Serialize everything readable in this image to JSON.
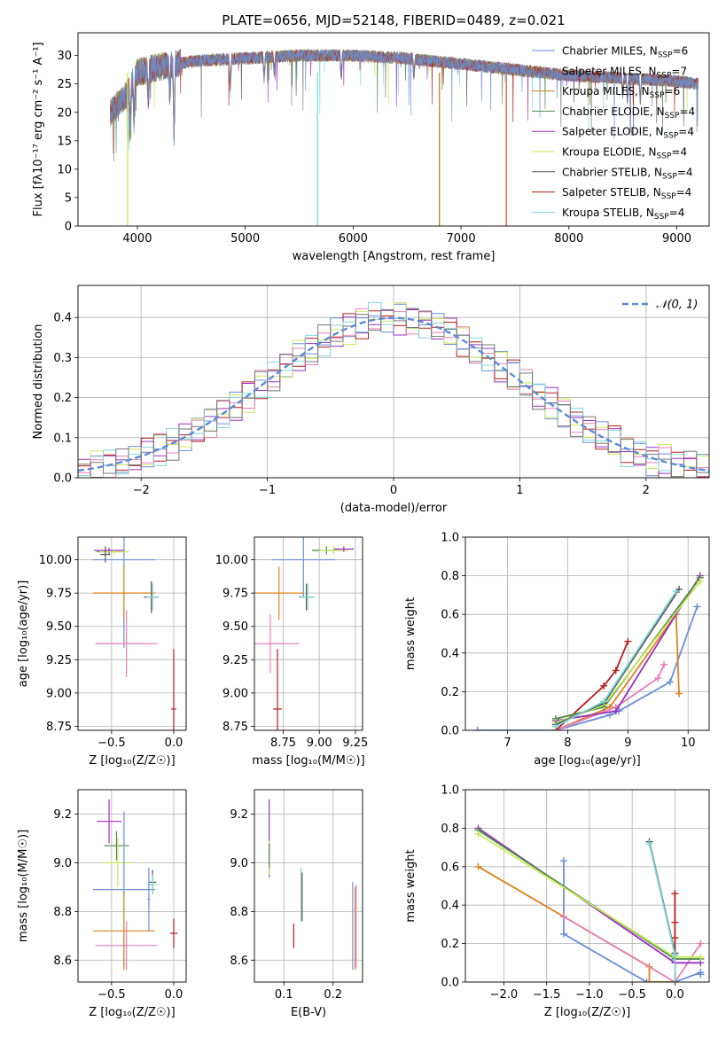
{
  "colors": [
    "#6a8fd8",
    "#6e6e6e",
    "#e0801c",
    "#5aa05a",
    "#9b30c0",
    "#c8e85a",
    "#888888",
    "#b81c1c",
    "#7fd8d8",
    "#e87fb8"
  ],
  "chart_data": [
    {
      "id": "spectrum",
      "type": "line",
      "title": "PLATE=0656, MJD=52148, FIBERID=0489, z=0.021",
      "xlabel": "wavelength [Angstrom, rest frame]",
      "ylabel": "Flux [fλ10⁻¹⁷ erg cm⁻² s⁻¹ A⁻¹]",
      "xlim": [
        3450,
        9300
      ],
      "ylim": [
        0,
        34
      ],
      "xticks": [
        4000,
        5000,
        6000,
        7000,
        8000,
        9000
      ],
      "yticks": [
        0,
        5,
        10,
        15,
        20,
        25,
        30
      ],
      "grid": false,
      "legend_position": "top-right",
      "legend": [
        {
          "label": "Chabrier MILES, N",
          "sub": "SSP",
          "suffix": "=6",
          "color": "#6a8fd8"
        },
        {
          "label": "Salpeter MILES, N",
          "sub": "SSP",
          "suffix": "=7",
          "color": "#7a7a7a"
        },
        {
          "label": "Kroupa MILES, N",
          "sub": "SSP",
          "suffix": "=6",
          "color": "#c0821a"
        },
        {
          "label": "Chabrier ELODIE, N",
          "sub": "SSP",
          "suffix": "=4",
          "color": "#4d8a4d"
        },
        {
          "label": "Salpeter ELODIE, N",
          "sub": "SSP",
          "suffix": "=4",
          "color": "#9b30c0"
        },
        {
          "label": "Kroupa ELODIE, N",
          "sub": "SSP",
          "suffix": "=4",
          "color": "#c8e85a"
        },
        {
          "label": "Chabrier STELIB, N",
          "sub": "SSP",
          "suffix": "=4",
          "color": "#555555"
        },
        {
          "label": "Salpeter STELIB, N",
          "sub": "SSP",
          "suffix": "=4",
          "color": "#b81c1c"
        },
        {
          "label": "Kroupa STELIB, N",
          "sub": "SSP",
          "suffix": "=4",
          "color": "#7fd8d8"
        }
      ],
      "spectrum_range": [
        3750,
        9200
      ],
      "continuum": [
        [
          3750,
          20
        ],
        [
          3900,
          23
        ],
        [
          4000,
          27
        ],
        [
          4200,
          28
        ],
        [
          4500,
          29
        ],
        [
          5000,
          29.5
        ],
        [
          5500,
          30
        ],
        [
          6000,
          30
        ],
        [
          6500,
          29.5
        ],
        [
          7000,
          28.5
        ],
        [
          7500,
          27.5
        ],
        [
          8000,
          26.5
        ],
        [
          8500,
          26
        ],
        [
          9000,
          25.5
        ],
        [
          9200,
          25
        ]
      ],
      "absorption_lines": [
        [
          3934,
          8
        ],
        [
          3969,
          7
        ],
        [
          4102,
          5
        ],
        [
          4300,
          6
        ],
        [
          4340,
          13
        ],
        [
          4861,
          5
        ],
        [
          5175,
          4
        ],
        [
          5270,
          3
        ],
        [
          5890,
          4
        ],
        [
          6563,
          3
        ],
        [
          8500,
          3
        ],
        [
          8542,
          4
        ],
        [
          8662,
          4
        ]
      ],
      "drops": [
        {
          "x": 3910,
          "color": "#c8e85a"
        },
        {
          "x": 5670,
          "color": "#7fd8d8"
        },
        {
          "x": 6800,
          "color": "#c0821a"
        },
        {
          "x": 7420,
          "color": "#e05a1a"
        }
      ]
    },
    {
      "id": "residuals",
      "type": "histogram",
      "xlabel": "(data-model)/error",
      "ylabel": "Normed distribution",
      "xlim": [
        -2.5,
        2.5
      ],
      "ylim": [
        0,
        0.48
      ],
      "xticks": [
        -2,
        -1,
        0,
        1,
        2
      ],
      "yticks": [
        0.0,
        0.1,
        0.2,
        0.3,
        0.4
      ],
      "grid": true,
      "legend_position": "top-right",
      "legend": [
        {
          "label": "𝒩(0, 1)",
          "color": "#5b8bd8",
          "dashed": true
        }
      ],
      "bin_width": 0.1,
      "series": [
        {
          "color": "#6a8fd8",
          "offset": 0
        },
        {
          "color": "#9b30c0",
          "offset": 1
        },
        {
          "color": "#c8e85a",
          "offset": 2
        },
        {
          "color": "#b81c1c",
          "offset": 3
        },
        {
          "color": "#e87fb8",
          "offset": 4
        },
        {
          "color": "#7fd8d8",
          "offset": 5
        },
        {
          "color": "#777777",
          "offset": 6
        }
      ]
    },
    {
      "id": "age-vs-Z",
      "type": "errorbar",
      "xlabel": "Z [log₁₀(Z/Z☉)]",
      "ylabel": "age  [log₁₀(age/yr)]",
      "xlim": [
        -0.77,
        0.1
      ],
      "ylim": [
        8.72,
        10.17
      ],
      "xticks": [
        -0.5,
        0.0
      ],
      "xticklabels": [
        "−0.5",
        "0.0"
      ],
      "yticks": [
        8.75,
        9.0,
        9.25,
        9.5,
        9.75,
        10.0
      ],
      "grid": true,
      "points": [
        {
          "x": -0.4,
          "xerr": 0.25,
          "y": 10.0,
          "yerr": 0.66,
          "color": "#6a8fd8"
        },
        {
          "x": -0.4,
          "xerr": 0.25,
          "y": 9.75,
          "yerr": 0.2,
          "color": "#e0801c"
        },
        {
          "x": -0.38,
          "xerr": 0.25,
          "y": 9.37,
          "yerr": 0.25,
          "color": "#e87fb8"
        },
        {
          "x": -0.52,
          "xerr": 0.1,
          "y": 10.06,
          "yerr": 0.02,
          "color": "#4d8a4d"
        },
        {
          "x": -0.52,
          "xerr": 0.12,
          "y": 10.07,
          "yerr": 0.02,
          "color": "#9b30c0"
        },
        {
          "x": -0.48,
          "xerr": 0.12,
          "y": 10.06,
          "yerr": 0.02,
          "color": "#c8e85a"
        },
        {
          "x": -0.55,
          "xerr": 0.04,
          "y": 10.04,
          "yerr": 0.06,
          "color": "#555555"
        },
        {
          "x": -0.18,
          "xerr": 0.06,
          "y": 9.72,
          "yerr": 0.12,
          "color": "#555555"
        },
        {
          "x": -0.17,
          "xerr": 0.05,
          "y": 9.72,
          "yerr": 0.1,
          "color": "#7fd8d8"
        },
        {
          "x": 0.0,
          "xerr": 0.02,
          "y": 8.88,
          "yerr": 0.45,
          "color": "#b81c1c"
        }
      ]
    },
    {
      "id": "age-vs-mass",
      "type": "errorbar",
      "xlabel": "mass [log₁₀(M/M☉)]",
      "ylabel": "",
      "xlim": [
        8.55,
        9.3
      ],
      "ylim": [
        8.72,
        10.17
      ],
      "xticks": [
        8.75,
        9.0,
        9.25
      ],
      "xticklabels": [
        "8.75",
        "9.00",
        "9.25"
      ],
      "yticks": [
        8.75,
        9.0,
        9.25,
        9.5,
        9.75,
        10.0
      ],
      "grid": true,
      "points": [
        {
          "x": 8.89,
          "xerr": 0.22,
          "y": 10.0,
          "yerr": 0.28,
          "color": "#6a8fd8"
        },
        {
          "x": 8.72,
          "xerr": 0.17,
          "y": 9.75,
          "yerr": 0.2,
          "color": "#e0801c"
        },
        {
          "x": 8.66,
          "xerr": 0.2,
          "y": 9.37,
          "yerr": 0.22,
          "color": "#e87fb8"
        },
        {
          "x": 8.91,
          "xerr": 0.05,
          "y": 9.72,
          "yerr": 0.1,
          "color": "#555555"
        },
        {
          "x": 8.92,
          "xerr": 0.05,
          "y": 9.72,
          "yerr": 0.1,
          "color": "#7fd8d8"
        },
        {
          "x": 9.05,
          "xerr": 0.1,
          "y": 10.07,
          "yerr": 0.03,
          "color": "#4d8a4d"
        },
        {
          "x": 9.1,
          "xerr": 0.1,
          "y": 10.07,
          "yerr": 0.03,
          "color": "#c8e85a"
        },
        {
          "x": 9.17,
          "xerr": 0.07,
          "y": 10.08,
          "yerr": 0.02,
          "color": "#9b30c0"
        },
        {
          "x": 8.71,
          "xerr": 0.03,
          "y": 8.88,
          "yerr": 0.45,
          "color": "#b81c1c"
        }
      ]
    },
    {
      "id": "massweight-vs-age",
      "type": "line",
      "xlabel": "age  [log₁₀(age/yr)]",
      "ylabel": "mass weight",
      "xlim": [
        6.3,
        10.35
      ],
      "ylim": [
        0,
        1.0
      ],
      "xticks": [
        7,
        8,
        9,
        10
      ],
      "yticks": [
        0.0,
        0.2,
        0.4,
        0.6,
        0.8,
        1.0
      ],
      "yticklabels": [
        "0.0",
        "0.2",
        "0.4",
        "0.6",
        "0.8",
        "1.0"
      ],
      "grid": true,
      "series": [
        {
          "color": "#6a8fd8",
          "x": [
            6.5,
            7.8,
            8.7,
            8.85,
            9.7,
            10.15
          ],
          "y": [
            0.0,
            0.0,
            0.08,
            0.1,
            0.25,
            0.64
          ]
        },
        {
          "color": "#e0801c",
          "x": [
            7.8,
            8.7,
            9.8,
            9.85
          ],
          "y": [
            0.0,
            0.12,
            0.6,
            0.19
          ]
        },
        {
          "color": "#e87fb8",
          "x": [
            7.8,
            8.8,
            9.5,
            9.6
          ],
          "y": [
            0.0,
            0.12,
            0.27,
            0.34
          ]
        },
        {
          "color": "#b81c1c",
          "x": [
            7.8,
            8.6,
            8.8,
            9.0
          ],
          "y": [
            0.0,
            0.23,
            0.31,
            0.46
          ]
        },
        {
          "color": "#9b30c0",
          "x": [
            7.8,
            8.8,
            10.2
          ],
          "y": [
            0.05,
            0.1,
            0.8
          ]
        },
        {
          "color": "#4d8a4d",
          "x": [
            7.8,
            8.6,
            10.2
          ],
          "y": [
            0.06,
            0.12,
            0.79
          ]
        },
        {
          "color": "#c8e85a",
          "x": [
            7.8,
            8.6,
            10.2
          ],
          "y": [
            0.04,
            0.13,
            0.77
          ]
        },
        {
          "color": "#555555",
          "x": [
            7.8,
            8.6,
            9.85
          ],
          "y": [
            0.03,
            0.14,
            0.73
          ]
        },
        {
          "color": "#7fd8d8",
          "x": [
            7.8,
            8.6,
            9.8
          ],
          "y": [
            0.02,
            0.15,
            0.72
          ]
        }
      ]
    },
    {
      "id": "mass-vs-Z",
      "type": "errorbar",
      "xlabel": "Z [log₁₀(Z/Z☉)]",
      "ylabel": "mass [log₁₀(M/M☉)]",
      "xlim": [
        -0.77,
        0.1
      ],
      "ylim": [
        8.51,
        9.3
      ],
      "xticks": [
        -0.5,
        0.0
      ],
      "xticklabels": [
        "−0.5",
        "0.0"
      ],
      "yticks": [
        8.6,
        8.8,
        9.0,
        9.2
      ],
      "grid": true,
      "points": [
        {
          "x": -0.52,
          "xerr": 0.1,
          "y": 9.17,
          "yerr": 0.09,
          "color": "#9b30c0"
        },
        {
          "x": -0.46,
          "xerr": 0.1,
          "y": 9.07,
          "yerr": 0.06,
          "color": "#4d8a4d"
        },
        {
          "x": -0.45,
          "xerr": 0.12,
          "y": 9.0,
          "yerr": 0.1,
          "color": "#c8e85a"
        },
        {
          "x": -0.4,
          "xerr": 0.25,
          "y": 8.89,
          "yerr": 0.32,
          "color": "#6a8fd8"
        },
        {
          "x": -0.17,
          "xerr": 0.03,
          "y": 8.92,
          "yerr": 0.05,
          "color": "#555555"
        },
        {
          "x": -0.17,
          "xerr": 0.04,
          "y": 8.91,
          "yerr": 0.04,
          "color": "#7fd8d8"
        },
        {
          "x": -0.2,
          "xerr": 0.01,
          "y": 8.85,
          "yerr": 0.13,
          "color": "#6a8fd8"
        },
        {
          "x": -0.4,
          "xerr": 0.25,
          "y": 8.72,
          "yerr": 0.16,
          "color": "#e0801c"
        },
        {
          "x": -0.38,
          "xerr": 0.25,
          "y": 8.66,
          "yerr": 0.1,
          "color": "#e87fb8"
        },
        {
          "x": 0.0,
          "xerr": 0.03,
          "y": 8.71,
          "yerr": 0.06,
          "color": "#b81c1c"
        }
      ]
    },
    {
      "id": "mass-vs-EBV",
      "type": "errorbar",
      "xlabel": "E(B-V)",
      "ylabel": "",
      "xlim": [
        0.04,
        0.26
      ],
      "ylim": [
        8.51,
        9.3
      ],
      "xticks": [
        0.1,
        0.2
      ],
      "xticklabels": [
        "0.1",
        "0.2"
      ],
      "yticks": [
        8.6,
        8.8,
        9.0,
        9.2
      ],
      "grid": true,
      "points": [
        {
          "x": 0.07,
          "y": 9.1,
          "yerr": 0.16,
          "color": "#9b30c0"
        },
        {
          "x": 0.07,
          "y": 9.02,
          "yerr": 0.07,
          "color": "#c8e85a"
        },
        {
          "x": 0.07,
          "y": 9.03,
          "yerr": 0.05,
          "color": "#4d8a4d"
        },
        {
          "x": 0.12,
          "y": 8.7,
          "yerr": 0.05,
          "color": "#b81c1c"
        },
        {
          "x": 0.135,
          "y": 8.87,
          "yerr": 0.11,
          "color": "#7fd8d8"
        },
        {
          "x": 0.137,
          "y": 8.86,
          "yerr": 0.1,
          "color": "#555555"
        },
        {
          "x": 0.24,
          "y": 8.74,
          "yerr": 0.18,
          "color": "#6a8fd8"
        },
        {
          "x": 0.245,
          "y": 8.73,
          "yerr": 0.17,
          "color": "#e0801c"
        },
        {
          "x": 0.247,
          "y": 8.74,
          "yerr": 0.17,
          "color": "#e87fb8"
        }
      ]
    },
    {
      "id": "massweight-vs-Z",
      "type": "line",
      "xlabel": "Z [log₁₀(Z/Z☉)]",
      "ylabel": "mass weight",
      "xlim": [
        -2.45,
        0.4
      ],
      "ylim": [
        0,
        1.0
      ],
      "xticks": [
        -2.0,
        -1.5,
        -1.0,
        -0.5,
        0.0
      ],
      "xticklabels": [
        "−2.0",
        "−1.5",
        "−1.0",
        "−0.5",
        "0.0"
      ],
      "yticks": [
        0.0,
        0.2,
        0.4,
        0.6,
        0.8,
        1.0
      ],
      "yticklabels": [
        "0.0",
        "0.2",
        "0.4",
        "0.6",
        "0.8",
        "1.0"
      ],
      "grid": true,
      "series": [
        {
          "color": "#6a8fd8",
          "x": [
            -1.3,
            -1.3,
            -0.33,
            0.0,
            0.3,
            0.3
          ],
          "y": [
            0.63,
            0.25,
            0.0,
            0.0,
            0.05,
            0.04
          ]
        },
        {
          "color": "#e0801c",
          "x": [
            -2.3,
            -0.3,
            -0.3,
            0.0
          ],
          "y": [
            0.6,
            0.08,
            0.0,
            0.0
          ]
        },
        {
          "color": "#e87fb8",
          "x": [
            -1.3,
            0.0,
            0.3
          ],
          "y": [
            0.34,
            0.0,
            0.2
          ]
        },
        {
          "color": "#b81c1c",
          "x": [
            0.0,
            0.0,
            0.0,
            0.0
          ],
          "y": [
            0.46,
            0.31,
            0.23,
            0.0
          ]
        },
        {
          "color": "#9b30c0",
          "x": [
            -2.3,
            0.0,
            0.3
          ],
          "y": [
            0.8,
            0.1,
            0.1
          ]
        },
        {
          "color": "#4d8a4d",
          "x": [
            -2.3,
            0.0,
            0.3
          ],
          "y": [
            0.79,
            0.12,
            0.12
          ]
        },
        {
          "color": "#c8e85a",
          "x": [
            -2.3,
            0.0,
            0.3
          ],
          "y": [
            0.77,
            0.13,
            0.13
          ]
        },
        {
          "color": "#555555",
          "x": [
            -0.3,
            0.0,
            0.0
          ],
          "y": [
            0.73,
            0.15,
            0.0
          ]
        },
        {
          "color": "#7fd8d8",
          "x": [
            -0.3,
            0.0,
            0.0
          ],
          "y": [
            0.72,
            0.14,
            0.0
          ]
        }
      ]
    }
  ]
}
